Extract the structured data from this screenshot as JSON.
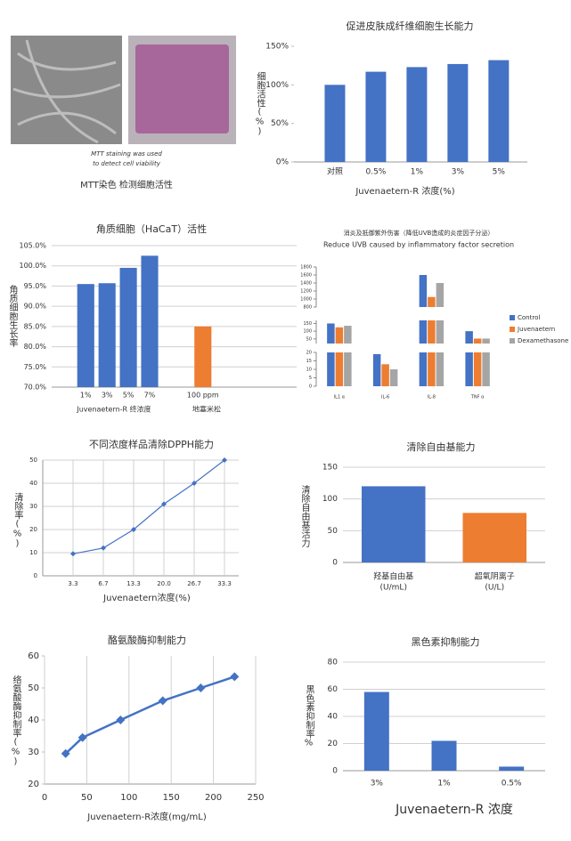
{
  "image_panel": {
    "caption_en": [
      "MTT staining was used",
      "to detect cell viability"
    ],
    "caption": "MTT染色 检测细胞活性"
  },
  "chart_data": [
    {
      "type": "bar",
      "title": "促进皮肤成纤维细胞生长能力",
      "y_label": "细胞活性(%)",
      "x_label": "Juvenaetern-R 浓度(%)",
      "categories": [
        "对照",
        "0.5%",
        "1%",
        "3%",
        "5%"
      ],
      "values": [
        100,
        117,
        123,
        127,
        132
      ],
      "color": "#4472c4",
      "ylim": [
        0,
        150
      ],
      "yticks": [
        {
          "value": 0,
          "label": "0%"
        },
        {
          "value": 50,
          "label": "50%"
        },
        {
          "value": 100,
          "label": "100%"
        },
        {
          "value": 150,
          "label": "150%"
        }
      ],
      "grid": "none"
    },
    {
      "type": "bar",
      "title": "角质细胞（HaCaT）活性",
      "y_label": "角质细胞生长率",
      "categories": [
        "1%",
        "3%",
        "5%",
        "7%",
        "100 ppm"
      ],
      "x_group_labels": [
        "Juvenaetern-R 终浓度",
        "地塞米松"
      ],
      "values": [
        95.5,
        95.7,
        99.5,
        102.5,
        85
      ],
      "colors": [
        "#4472c4",
        "#4472c4",
        "#4472c4",
        "#4472c4",
        "#ed7d31"
      ],
      "ylim": [
        70,
        105
      ],
      "yticks": [
        {
          "value": 70,
          "label": "70.0%"
        },
        {
          "value": 75,
          "label": "75.0%"
        },
        {
          "value": 80,
          "label": "80.0%"
        },
        {
          "value": 85,
          "label": "85.0%"
        },
        {
          "value": 90,
          "label": "90.0%"
        },
        {
          "value": 95,
          "label": "95.0%"
        },
        {
          "value": 100,
          "label": "100.0%"
        },
        {
          "value": 105,
          "label": "105.0%"
        }
      ],
      "grid": "y"
    },
    {
      "type": "bar",
      "title": "消炎及抵御紫外伤害（降低UVB造成的炎症因子分泌）",
      "subtitle": "Reduce UVB caused by inflammatory factor secretion",
      "categories": [
        "IL1 α",
        "IL-6",
        "IL-8",
        "TNF α"
      ],
      "series": [
        {
          "name": "Control",
          "color": "#4472c4",
          "values": [
            150,
            19,
            1600,
            100
          ]
        },
        {
          "name": "Juvenaetern",
          "color": "#ed7d31",
          "values": [
            125,
            13,
            1050,
            52
          ]
        },
        {
          "name": "Dexamethasone",
          "color": "#a5a5a5",
          "values": [
            135,
            10,
            1400,
            52
          ]
        }
      ],
      "y_segments": [
        {
          "ylim": [
            0,
            20
          ],
          "yticks": [
            0,
            5,
            10,
            15,
            20
          ]
        },
        {
          "ylim": [
            20,
            170
          ],
          "yticks": [
            50,
            100,
            150
          ]
        },
        {
          "ylim": [
            800,
            1800
          ],
          "yticks": [
            800,
            1000,
            1200,
            1400,
            1600,
            1800
          ]
        }
      ],
      "legend": "right",
      "grid": "none"
    },
    {
      "type": "line",
      "title": "不同浓度样品清除DPPH能力",
      "y_label": "清除率(%)",
      "x_label": "Juvenaetern浓度(%)",
      "categories": [
        "3.3",
        "6.7",
        "13.3",
        "20.0",
        "26.7",
        "33.3"
      ],
      "values": [
        9.5,
        12,
        20,
        31,
        40,
        50
      ],
      "color": "#4472c4",
      "ylim": [
        0,
        50
      ],
      "yticks": [
        0,
        10,
        20,
        30,
        40,
        50
      ],
      "grid": "both"
    },
    {
      "type": "bar",
      "title": "清除自由基能力",
      "y_label": "清除自由基活力",
      "categories": [
        "羟基自由基",
        "超氧阴离子"
      ],
      "category_units": [
        "(U/mL)",
        "(U/L)"
      ],
      "values": [
        120,
        78
      ],
      "colors": [
        "#4472c4",
        "#ed7d31"
      ],
      "ylim": [
        0,
        150
      ],
      "yticks": [
        0,
        50,
        100,
        150
      ],
      "grid": "y"
    },
    {
      "type": "line",
      "title": "酪氨酸酶抑制能力",
      "y_label": "络氨酸酶抑制率(%)",
      "x_label": "Juvenaetern-R浓度(mg/mL)",
      "x": [
        25,
        45,
        90,
        140,
        185,
        225
      ],
      "values": [
        29.5,
        34.5,
        40,
        46,
        50,
        53.5
      ],
      "color": "#4472c4",
      "xlim": [
        0,
        250
      ],
      "xticks": [
        0,
        50,
        100,
        150,
        200,
        250
      ],
      "ylim": [
        20,
        60
      ],
      "yticks": [
        20,
        30,
        40,
        50,
        60
      ],
      "grid": "x"
    },
    {
      "type": "bar",
      "title": "黑色素抑制能力",
      "y_label": "黑色素抑制率%",
      "x_label": "Juvenaetern-R 浓度",
      "categories": [
        "3%",
        "1%",
        "0.5%"
      ],
      "values": [
        58,
        22,
        3
      ],
      "color": "#4472c4",
      "ylim": [
        0,
        80
      ],
      "yticks": [
        0,
        20,
        40,
        60,
        80
      ],
      "grid": "y"
    }
  ]
}
